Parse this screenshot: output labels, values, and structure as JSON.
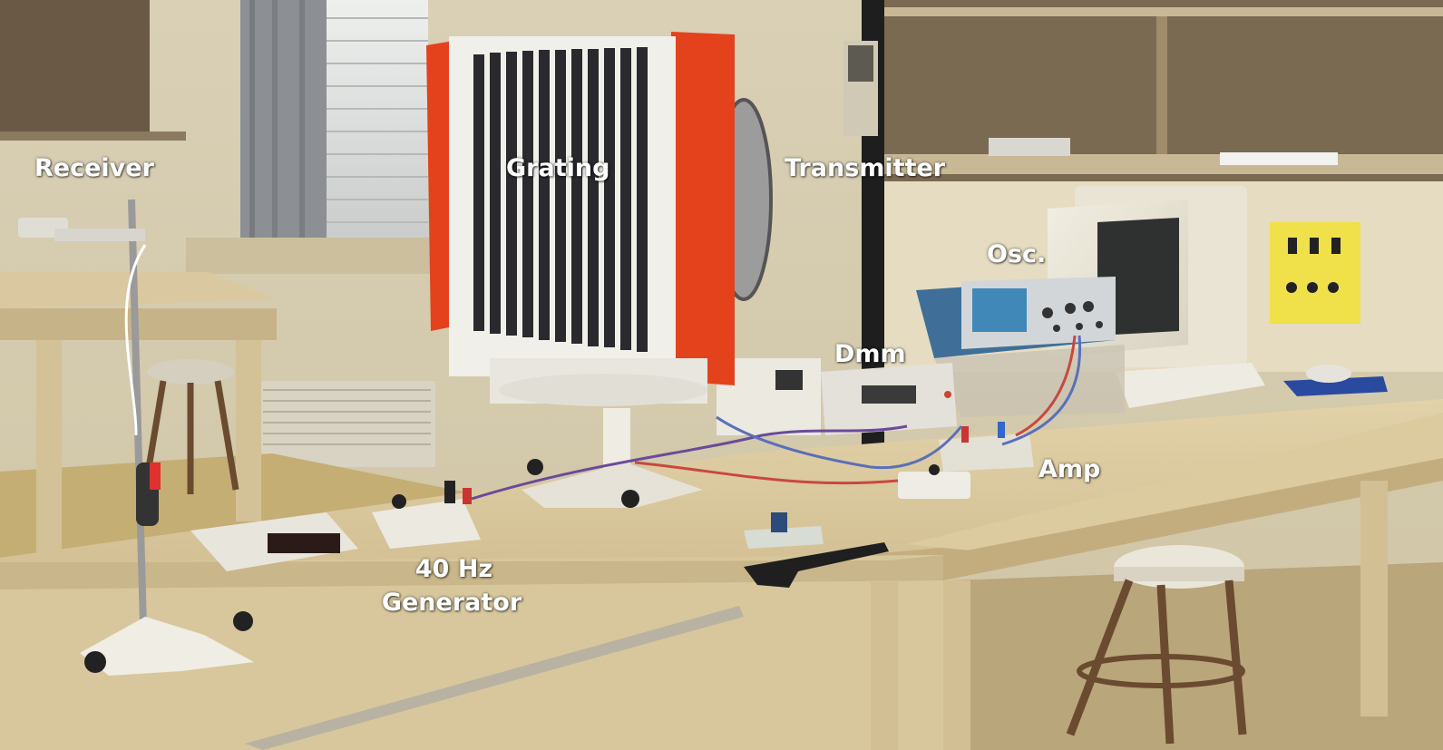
{
  "labels": {
    "receiver": "Receiver",
    "grating": "Grating",
    "transmitter": "Transmitter",
    "osc": "Osc.",
    "dmm": "Dmm",
    "amp": "Amp",
    "generator_line1": "40 Hz",
    "generator_line2": "Generator"
  },
  "colors": {
    "wall": "#d8ceb0",
    "table_top": "#d9c8a0",
    "grating_frame_orange": "#e4421d",
    "grating_slats": "#2a2a2e",
    "oscilloscope_screen": "#3f88b8",
    "floor": "#c9b37a"
  }
}
